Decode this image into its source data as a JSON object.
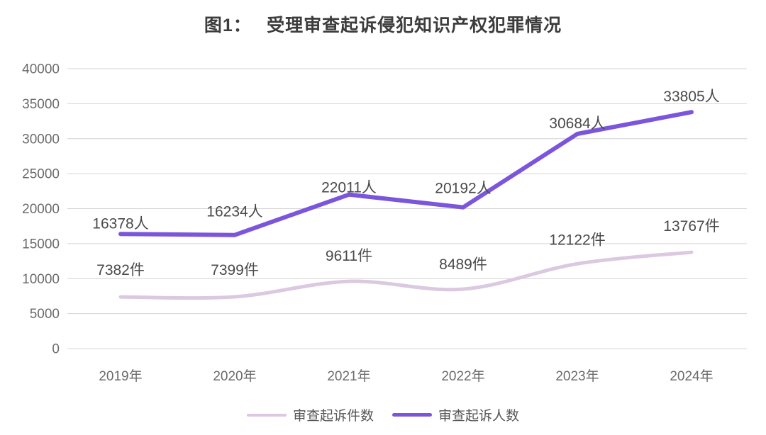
{
  "page": {
    "background": "#ffffff"
  },
  "chart_data": {
    "type": "line",
    "title": "图1：　 受理审查起诉侵犯知识产权犯罪情况",
    "categories": [
      "2019年",
      "2020年",
      "2021年",
      "2022年",
      "2023年",
      "2024年"
    ],
    "series": [
      {
        "name": "审查起诉件数",
        "unit": "件",
        "color": "#dbc8e1",
        "stroke_width": 5,
        "line_style": "smooth",
        "values": [
          7382,
          7399,
          9611,
          8489,
          12122,
          13767
        ],
        "labels": [
          "7382件",
          "7399件",
          "9611件",
          "8489件",
          "12122件",
          "13767件"
        ]
      },
      {
        "name": "审查起诉人数",
        "unit": "人",
        "color": "#7b55db",
        "stroke_width": 6,
        "line_style": "straight",
        "values": [
          16378,
          16234,
          22011,
          20192,
          30684,
          33805
        ],
        "labels": [
          "16378人",
          "16234人",
          "22011人",
          "20192人",
          "30684人",
          "33805人"
        ]
      }
    ],
    "y_ticks": [
      0,
      5000,
      10000,
      15000,
      20000,
      25000,
      30000,
      35000,
      40000
    ],
    "ylim": [
      0,
      40000
    ],
    "grid": "horizontal",
    "legend_position": "bottom",
    "label_dy": [
      [
        31,
        31,
        29,
        28,
        27,
        30
      ],
      [
        8,
        26,
        3,
        20,
        8,
        15
      ]
    ],
    "colors": {
      "grid": "#d4d4d4",
      "axis_text": "#6b6b6b",
      "data_label": "#4a4a4a",
      "title": "#3c3c3c",
      "legend_text": "#555555"
    }
  }
}
